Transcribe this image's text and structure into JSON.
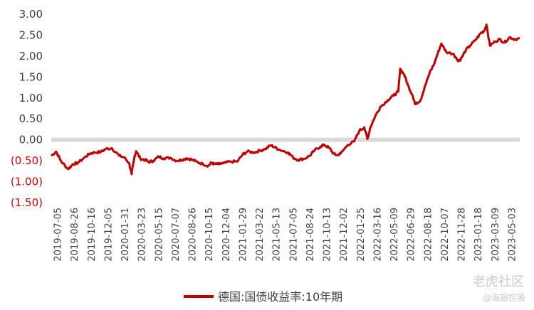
{
  "chart_data": {
    "type": "line",
    "title": "",
    "xlabel": "",
    "ylabel": "",
    "ylim": [
      -1.5,
      3.0
    ],
    "y_ticks": [
      "3.00",
      "2.50",
      "2.00",
      "1.50",
      "1.00",
      "0.50",
      "0.00",
      "(0.50)",
      "(1.00)",
      "(1.50)"
    ],
    "y_tick_values": [
      3.0,
      2.5,
      2.0,
      1.5,
      1.0,
      0.5,
      0.0,
      -0.5,
      -1.0,
      -1.5
    ],
    "x_ticks": [
      "2019-07-05",
      "2019-08-26",
      "2019-10-16",
      "2019-12-05",
      "2020-01-31",
      "2020-03-23",
      "2020-05-15",
      "2020-07-07",
      "2020-08-26",
      "2020-10-15",
      "2020-12-04",
      "2021-01-29",
      "2021-03-22",
      "2021-05-13",
      "2021-07-05",
      "2021-08-24",
      "2021-10-13",
      "2021-12-02",
      "2022-01-25",
      "2022-03-16",
      "2022-05-09",
      "2022-06-29",
      "2022-08-18",
      "2022-10-07",
      "2022-11-28",
      "2023-01-18",
      "2023-03-09",
      "2023-05-03"
    ],
    "grid": false,
    "zero_line_color": "#d9d9d9",
    "negative_label_color": "#e00000",
    "positive_label_color": "#404040",
    "legend_position": "bottom",
    "series": [
      {
        "name": "德国:国债收益率:10年期",
        "color": "#c00000",
        "x": [
          "2019-07-05",
          "2019-07-20",
          "2019-08-05",
          "2019-08-26",
          "2019-09-10",
          "2019-09-25",
          "2019-10-16",
          "2019-11-01",
          "2019-11-15",
          "2019-12-05",
          "2019-12-20",
          "2020-01-08",
          "2020-01-31",
          "2020-02-15",
          "2020-03-01",
          "2020-03-09",
          "2020-03-18",
          "2020-03-23",
          "2020-04-05",
          "2020-04-20",
          "2020-05-01",
          "2020-05-15",
          "2020-06-01",
          "2020-06-15",
          "2020-07-07",
          "2020-07-25",
          "2020-08-10",
          "2020-08-26",
          "2020-09-10",
          "2020-09-25",
          "2020-10-15",
          "2020-11-01",
          "2020-11-10",
          "2020-11-20",
          "2020-12-04",
          "2020-12-18",
          "2021-01-08",
          "2021-01-29",
          "2021-02-15",
          "2021-03-01",
          "2021-03-22",
          "2021-04-08",
          "2021-04-25",
          "2021-05-13",
          "2021-05-25",
          "2021-06-10",
          "2021-07-05",
          "2021-07-20",
          "2021-08-05",
          "2021-08-24",
          "2021-09-10",
          "2021-09-25",
          "2021-10-13",
          "2021-10-25",
          "2021-11-10",
          "2021-11-22",
          "2021-12-02",
          "2021-12-15",
          "2022-01-05",
          "2022-01-25",
          "2022-02-10",
          "2022-02-25",
          "2022-03-07",
          "2022-03-16",
          "2022-03-30",
          "2022-04-15",
          "2022-05-09",
          "2022-05-25",
          "2022-06-10",
          "2022-06-16",
          "2022-06-29",
          "2022-07-10",
          "2022-07-25",
          "2022-08-01",
          "2022-08-18",
          "2022-08-30",
          "2022-09-15",
          "2022-09-28",
          "2022-10-07",
          "2022-10-21",
          "2022-11-05",
          "2022-11-28",
          "2022-12-10",
          "2022-12-20",
          "2023-01-05",
          "2023-01-18",
          "2023-02-05",
          "2023-02-20",
          "2023-03-02",
          "2023-03-09",
          "2023-03-20",
          "2023-04-05",
          "2023-04-20",
          "2023-05-03",
          "2023-05-20",
          "2023-06-05",
          "2023-06-20"
        ],
        "values": [
          -0.38,
          -0.28,
          -0.52,
          -0.7,
          -0.58,
          -0.55,
          -0.42,
          -0.33,
          -0.3,
          -0.29,
          -0.22,
          -0.2,
          -0.38,
          -0.42,
          -0.55,
          -0.82,
          -0.4,
          -0.27,
          -0.45,
          -0.48,
          -0.53,
          -0.5,
          -0.4,
          -0.44,
          -0.43,
          -0.5,
          -0.48,
          -0.44,
          -0.47,
          -0.52,
          -0.58,
          -0.62,
          -0.55,
          -0.58,
          -0.58,
          -0.56,
          -0.52,
          -0.52,
          -0.35,
          -0.28,
          -0.3,
          -0.26,
          -0.22,
          -0.13,
          -0.18,
          -0.24,
          -0.3,
          -0.42,
          -0.48,
          -0.45,
          -0.38,
          -0.25,
          -0.16,
          -0.12,
          -0.2,
          -0.33,
          -0.37,
          -0.32,
          -0.12,
          -0.04,
          0.22,
          0.3,
          0.02,
          0.3,
          0.55,
          0.78,
          0.95,
          1.05,
          1.15,
          1.7,
          1.55,
          1.3,
          1.05,
          0.85,
          0.95,
          1.25,
          1.6,
          1.8,
          2.0,
          2.3,
          2.1,
          2.05,
          1.9,
          1.92,
          2.15,
          2.25,
          2.4,
          2.55,
          2.6,
          2.75,
          2.25,
          2.35,
          2.4,
          2.32,
          2.45,
          2.4,
          2.42
        ]
      }
    ]
  },
  "watermark": {
    "main": "老虎社区",
    "sub": "@海银控股"
  }
}
